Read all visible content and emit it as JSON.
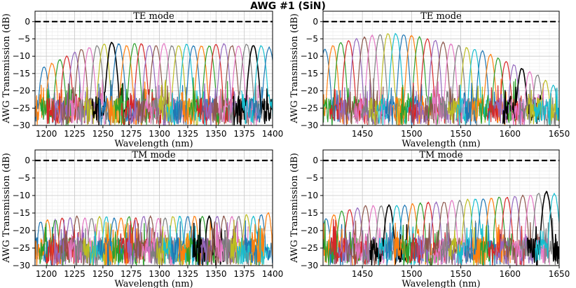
{
  "figure_title": "AWG #1 (SiN)",
  "colors": [
    "#1f77b4",
    "#ff7f0e",
    "#2ca02c",
    "#d62728",
    "#9467bd",
    "#8c564b",
    "#e377c2",
    "#7f7f7f",
    "#bcbd22",
    "#17becf",
    "#000000"
  ],
  "chart_data": [
    {
      "type": "line",
      "title": "TE mode",
      "xlabel": "Wavelength (nm)",
      "ylabel": "AWG Transmission (dB)",
      "xlim": [
        1190,
        1400
      ],
      "ylim": [
        -30,
        3
      ],
      "xticks": [
        1200,
        1225,
        1250,
        1275,
        1300,
        1325,
        1350,
        1375,
        1400
      ],
      "yticks": [
        0,
        -5,
        -10,
        -15,
        -20,
        -25,
        -30
      ],
      "grid": true,
      "reference_line": {
        "y": 0,
        "style": "dashed",
        "color": "#000000"
      },
      "channel_centers": [
        1198,
        1205,
        1212,
        1218,
        1225,
        1231,
        1238,
        1245,
        1251,
        1258,
        1264,
        1271,
        1278,
        1284,
        1291,
        1297,
        1304,
        1311,
        1317,
        1324,
        1330,
        1337,
        1344,
        1350,
        1357,
        1364,
        1370,
        1377,
        1383,
        1390,
        1397
      ],
      "channel_peaks": [
        -13,
        -12,
        -11,
        -10,
        -9,
        -8,
        -7.5,
        -7,
        -6.5,
        -6,
        -6.5,
        -7,
        -6.5,
        -6.5,
        -7,
        -7,
        -6.5,
        -7,
        -7,
        -6.5,
        -7,
        -7,
        -7,
        -6.5,
        -6.5,
        -7,
        -7,
        -6.5,
        -7,
        -7,
        -7.5
      ],
      "highlighted_channel_centers": [
        1258,
        1383
      ],
      "channel_fwhm_nm": 5.5
    },
    {
      "type": "line",
      "title": "TE mode",
      "xlabel": "Wavelength (nm)",
      "ylabel": "AWG Transmission (dB)",
      "xlim": [
        1410,
        1650
      ],
      "ylim": [
        -30,
        3
      ],
      "xticks": [
        1450,
        1500,
        1550,
        1600,
        1650
      ],
      "yticks": [
        0,
        -5,
        -10,
        -15,
        -20,
        -25,
        -30
      ],
      "grid": true,
      "reference_line": {
        "y": 0,
        "style": "dashed",
        "color": "#000000"
      },
      "channel_centers": [
        1412,
        1420,
        1428,
        1436,
        1444,
        1452,
        1460,
        1468,
        1476,
        1484,
        1492,
        1500,
        1508,
        1516,
        1524,
        1532,
        1540,
        1548,
        1556,
        1564,
        1572,
        1580,
        1588,
        1596,
        1604,
        1612,
        1620,
        1628,
        1636,
        1644
      ],
      "channel_peaks": [
        -8,
        -7,
        -6,
        -5.5,
        -5,
        -4.5,
        -4,
        -3.8,
        -3.5,
        -3.5,
        -3.8,
        -4,
        -4.5,
        -5,
        -5.5,
        -6,
        -6.5,
        -7,
        -7.5,
        -8,
        -8.5,
        -9.5,
        -10.5,
        -11.5,
        -12.5,
        -13.5,
        -14.5,
        -15.5,
        -17,
        -18.5
      ],
      "highlighted_channel_centers": [
        1432,
        1612
      ],
      "channel_fwhm_nm": 6
    },
    {
      "type": "line",
      "title": "TM mode",
      "xlabel": "Wavelength (nm)",
      "ylabel": "AWG Transmission (dB)",
      "xlim": [
        1190,
        1400
      ],
      "ylim": [
        -30,
        3
      ],
      "xticks": [
        1200,
        1225,
        1250,
        1275,
        1300,
        1325,
        1350,
        1375,
        1400
      ],
      "yticks": [
        0,
        -5,
        -10,
        -15,
        -20,
        -25,
        -30
      ],
      "grid": true,
      "reference_line": {
        "y": 0,
        "style": "dashed",
        "color": "#000000"
      },
      "channel_centers": [
        1195,
        1201,
        1208,
        1214,
        1221,
        1227,
        1234,
        1240,
        1247,
        1253,
        1260,
        1266,
        1273,
        1279,
        1286,
        1292,
        1299,
        1305,
        1312,
        1318,
        1325,
        1331,
        1338,
        1344,
        1351,
        1357,
        1364,
        1370,
        1377,
        1383,
        1390,
        1396
      ],
      "channel_peaks": [
        -17.5,
        -17,
        -17,
        -16.5,
        -16.5,
        -16,
        -16.5,
        -16.5,
        -16,
        -16,
        -16.5,
        -16.5,
        -16,
        -16.5,
        -16,
        -16,
        -16.5,
        -16.5,
        -16,
        -16,
        -16,
        -16,
        -16,
        -16,
        -16,
        -16,
        -16,
        -16,
        -15.5,
        -16,
        -15.5,
        -15
      ],
      "highlighted_channel_centers": [
        1230,
        1343
      ],
      "channel_fwhm_nm": 4.5
    },
    {
      "type": "line",
      "title": "TM mode",
      "xlabel": "Wavelength (nm)",
      "ylabel": "AWG Transmission (dB)",
      "xlim": [
        1410,
        1650
      ],
      "ylim": [
        -30,
        3
      ],
      "xticks": [
        1450,
        1500,
        1550,
        1600,
        1650
      ],
      "yticks": [
        0,
        -5,
        -10,
        -15,
        -20,
        -25,
        -30
      ],
      "grid": true,
      "reference_line": {
        "y": 0,
        "style": "dashed",
        "color": "#000000"
      },
      "channel_centers": [
        1413,
        1421,
        1429,
        1437,
        1445,
        1453,
        1461,
        1469,
        1477,
        1485,
        1493,
        1501,
        1509,
        1517,
        1525,
        1533,
        1541,
        1549,
        1557,
        1565,
        1573,
        1581,
        1589,
        1597,
        1605,
        1613,
        1621,
        1629,
        1637,
        1645
      ],
      "channel_peaks": [
        -16.5,
        -15.5,
        -14.5,
        -14,
        -13.5,
        -13,
        -13,
        -13,
        -12.8,
        -12.8,
        -12.8,
        -12.5,
        -12.3,
        -12,
        -12,
        -11.8,
        -11.5,
        -11.5,
        -11.2,
        -11,
        -11,
        -10.8,
        -10.5,
        -10.5,
        -10.3,
        -10,
        -10,
        -9.5,
        -9,
        -9.5
      ],
      "highlighted_channel_centers": [
        1475,
        1638
      ],
      "channel_fwhm_nm": 6
    }
  ]
}
